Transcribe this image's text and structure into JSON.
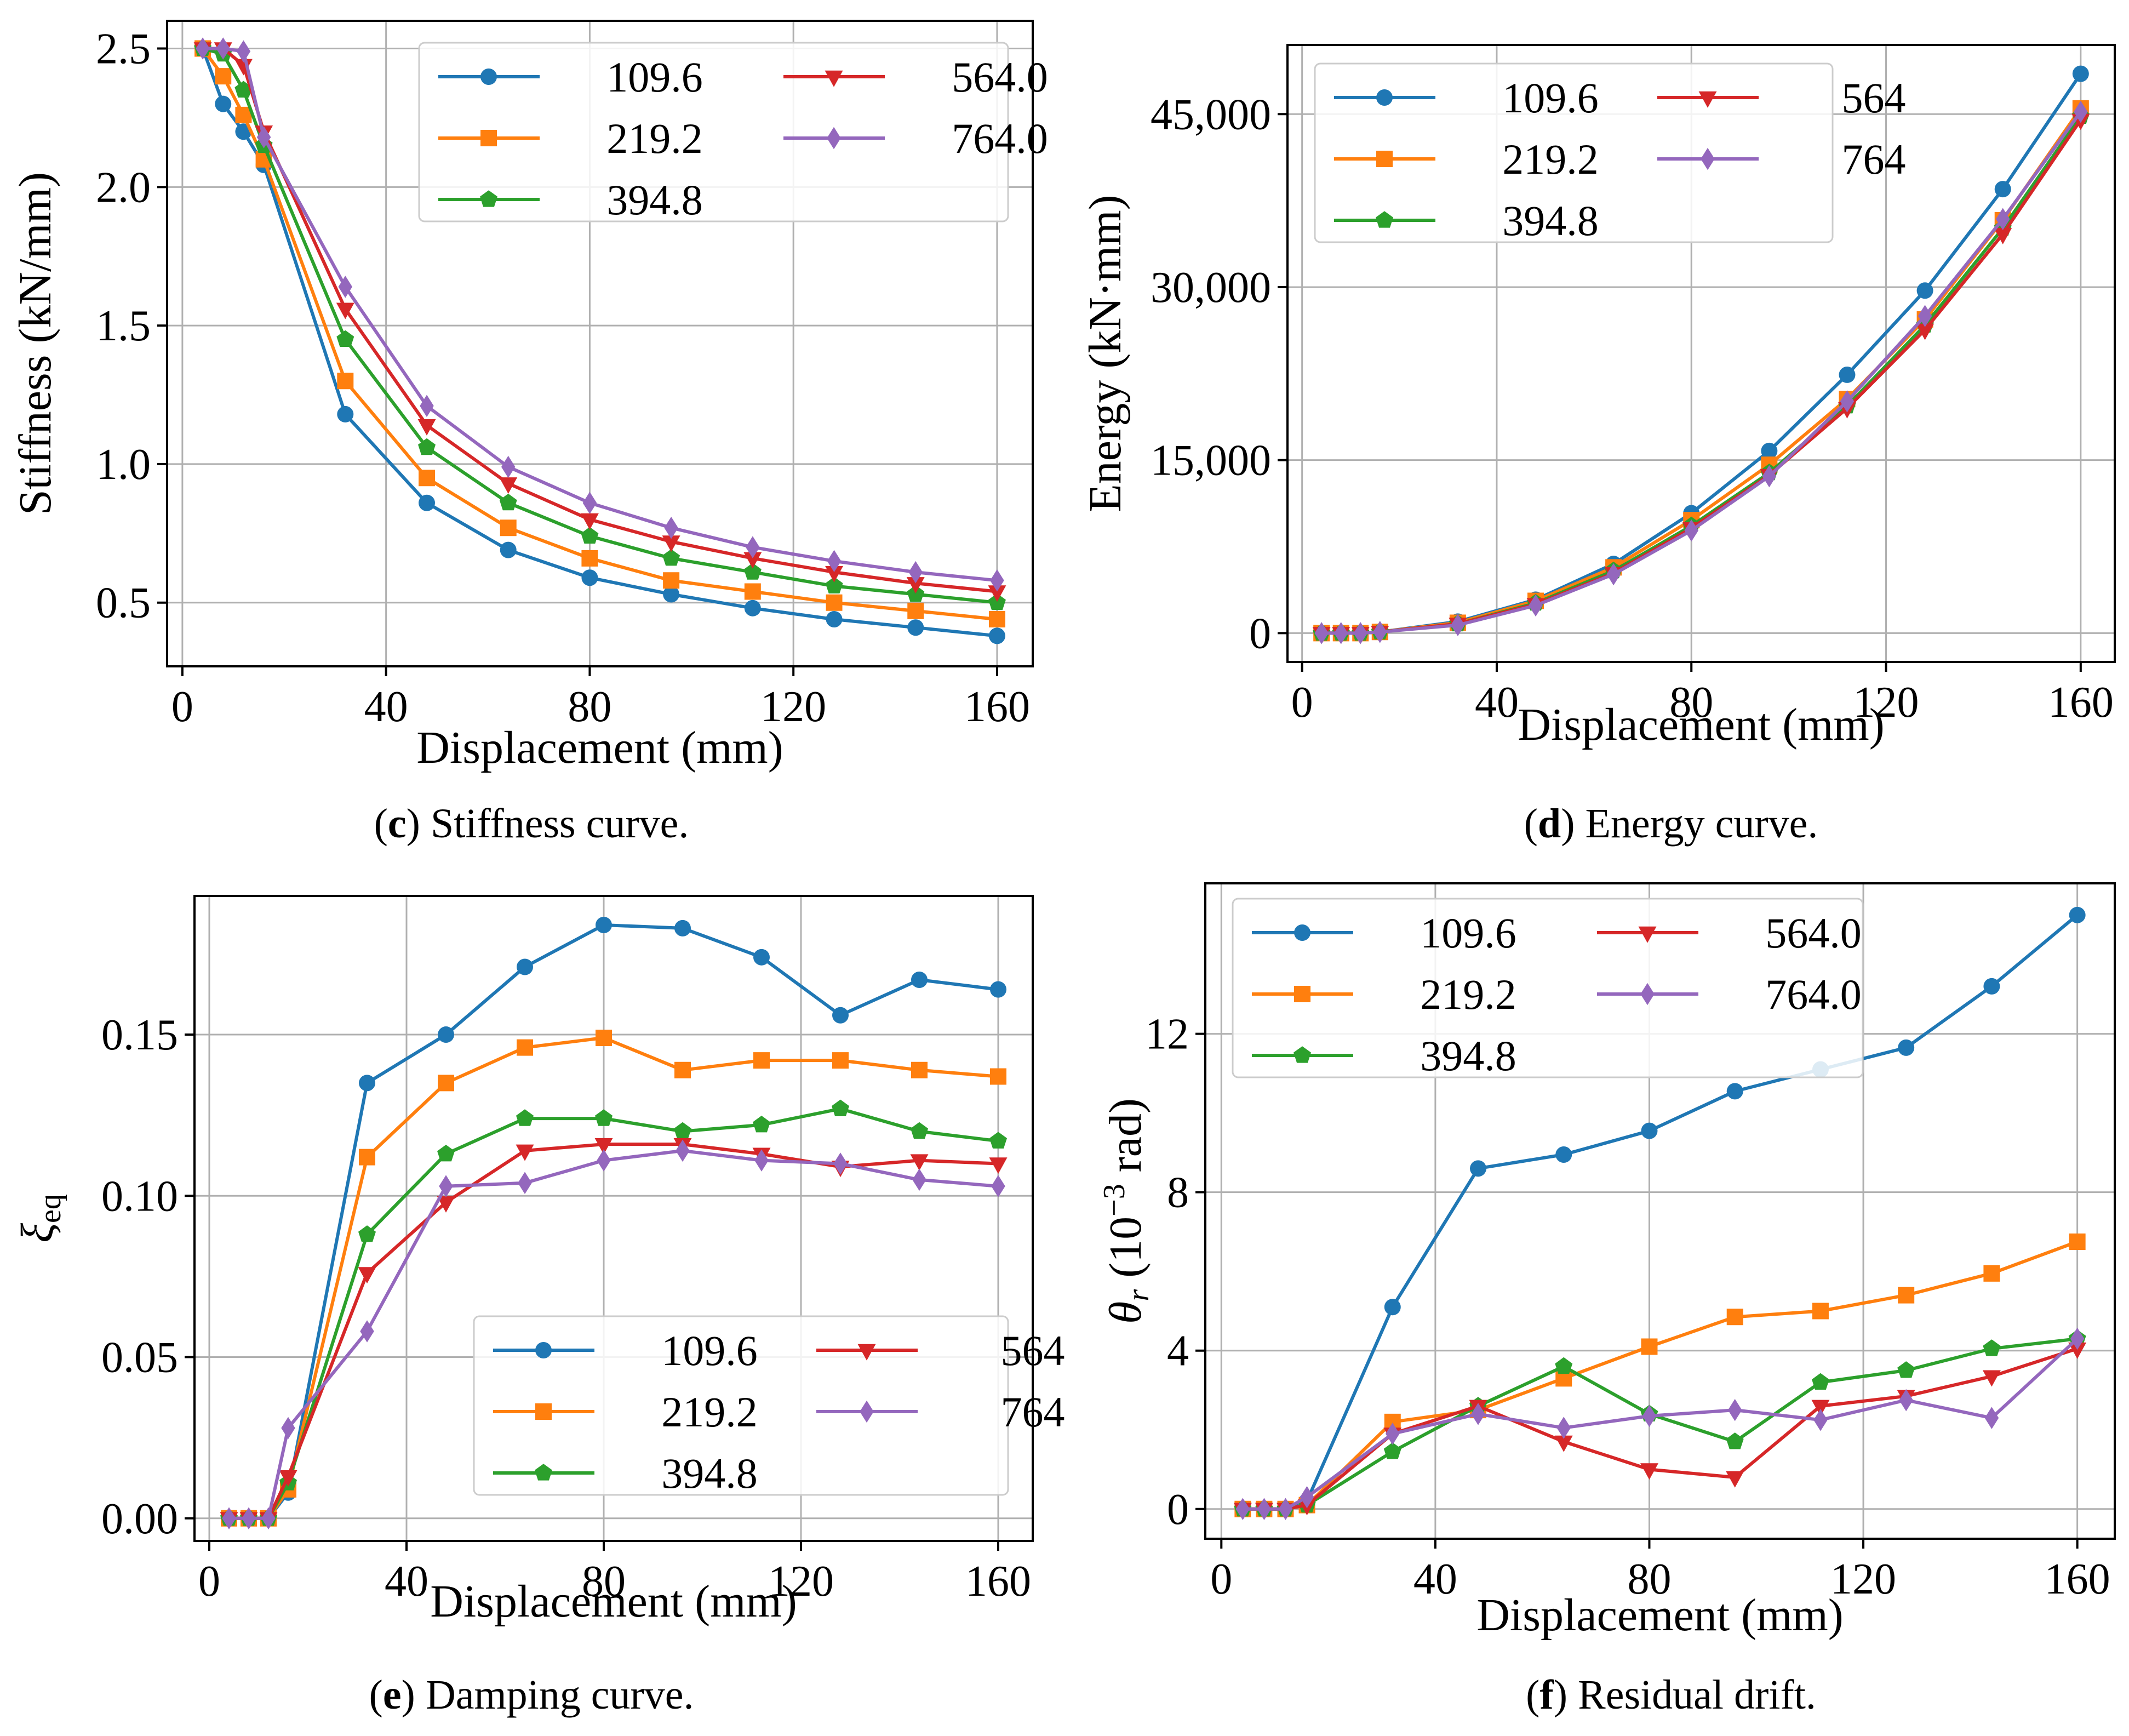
{
  "colors": {
    "109.6": "#1f77b4",
    "219.2": "#ff7f0e",
    "394.8": "#2ca02c",
    "564": "#d62728",
    "764": "#9467bd"
  },
  "chart_data": [
    {
      "id": "c",
      "type": "line",
      "caption_letter": "(c)",
      "caption_text": "Stiffness curve.",
      "xlabel": "Displacement (mm)",
      "ylabel": "Stiffness (kN/mm)",
      "xlim": [
        -3,
        167
      ],
      "ylim": [
        0.27,
        2.6
      ],
      "xticks": [
        0,
        40,
        80,
        120,
        160
      ],
      "xtick_labels": [
        "0",
        "40",
        "80",
        "120",
        "160"
      ],
      "yticks": [
        0.5,
        1.0,
        1.5,
        2.0,
        2.5
      ],
      "ytick_labels": [
        "0.5",
        "1.0",
        "1.5",
        "2.0",
        "2.5"
      ],
      "grid": true,
      "legend_position": "top-right",
      "x": [
        4,
        8,
        12,
        16,
        32,
        48,
        64,
        80,
        96,
        112,
        128,
        144,
        160
      ],
      "series": [
        {
          "name": "109.6",
          "marker": "circle",
          "values": [
            2.5,
            2.3,
            2.2,
            2.08,
            1.18,
            0.86,
            0.69,
            0.59,
            0.53,
            0.48,
            0.44,
            0.41,
            0.38
          ]
        },
        {
          "name": "219.2",
          "marker": "square",
          "values": [
            2.5,
            2.4,
            2.26,
            2.1,
            1.3,
            0.95,
            0.77,
            0.66,
            0.58,
            0.54,
            0.5,
            0.47,
            0.44
          ]
        },
        {
          "name": "394.8",
          "marker": "pentagon",
          "values": [
            2.5,
            2.48,
            2.35,
            2.15,
            1.45,
            1.06,
            0.86,
            0.74,
            0.66,
            0.61,
            0.56,
            0.53,
            0.5
          ]
        },
        {
          "name": "564.0",
          "marker": "triangle-down",
          "values": [
            2.5,
            2.5,
            2.44,
            2.2,
            1.56,
            1.14,
            0.93,
            0.8,
            0.72,
            0.66,
            0.61,
            0.57,
            0.54
          ]
        },
        {
          "name": "764.0",
          "marker": "diamond",
          "values": [
            2.5,
            2.5,
            2.49,
            2.18,
            1.64,
            1.21,
            0.99,
            0.86,
            0.77,
            0.7,
            0.65,
            0.61,
            0.58
          ]
        }
      ]
    },
    {
      "id": "d",
      "type": "line",
      "caption_letter": "(d)",
      "caption_text": "Energy curve.",
      "xlabel": "Displacement (mm)",
      "ylabel": "Energy (kN·mm)",
      "xlim": [
        -3,
        167
      ],
      "ylim": [
        -2500,
        51000
      ],
      "xticks": [
        0,
        40,
        80,
        120,
        160
      ],
      "xtick_labels": [
        "0",
        "40",
        "80",
        "120",
        "160"
      ],
      "yticks": [
        0,
        15000,
        30000,
        45000
      ],
      "ytick_labels": [
        "0",
        "15,000",
        "30,000",
        "45,000"
      ],
      "grid": true,
      "legend_position": "top-left",
      "x": [
        4,
        8,
        12,
        16,
        32,
        48,
        64,
        80,
        96,
        112,
        128,
        144,
        160
      ],
      "series": [
        {
          "name": "109.6",
          "marker": "circle",
          "values": [
            0,
            0,
            0,
            100,
            1000,
            2900,
            6000,
            10400,
            15800,
            22400,
            29700,
            38500,
            48500
          ]
        },
        {
          "name": "219.2",
          "marker": "square",
          "values": [
            0,
            0,
            0,
            100,
            900,
            2800,
            5700,
            9800,
            14600,
            20300,
            27200,
            35800,
            45500
          ]
        },
        {
          "name": "394.8",
          "marker": "pentagon",
          "values": [
            0,
            0,
            0,
            100,
            800,
            2600,
            5400,
            9300,
            13900,
            19700,
            26700,
            35100,
            44800
          ]
        },
        {
          "name": "564",
          "marker": "triangle-down",
          "values": [
            0,
            0,
            0,
            100,
            800,
            2500,
            5200,
            9100,
            13700,
            19500,
            26300,
            34600,
            44500
          ]
        },
        {
          "name": "764",
          "marker": "diamond",
          "values": [
            0,
            0,
            0,
            100,
            700,
            2400,
            5100,
            8900,
            13600,
            20100,
            27500,
            35900,
            45200
          ]
        }
      ]
    },
    {
      "id": "e",
      "type": "line",
      "caption_letter": "(e)",
      "caption_text": "Damping curve.",
      "xlabel": "Displacement (mm)",
      "ylabel": "ξ",
      "ylabel_sub": "eq",
      "xlim": [
        -3,
        167
      ],
      "ylim": [
        -0.007,
        0.193
      ],
      "xticks": [
        0,
        40,
        80,
        120,
        160
      ],
      "xtick_labels": [
        "0",
        "40",
        "80",
        "120",
        "160"
      ],
      "yticks": [
        0.0,
        0.05,
        0.1,
        0.15
      ],
      "ytick_labels": [
        "0.00",
        "0.05",
        "0.10",
        "0.15"
      ],
      "grid": true,
      "legend_position": "bottom-right",
      "x": [
        4,
        8,
        12,
        16,
        32,
        48,
        64,
        80,
        96,
        112,
        128,
        144,
        160
      ],
      "series": [
        {
          "name": "109.6",
          "marker": "circle",
          "values": [
            0,
            0,
            0,
            0.008,
            0.135,
            0.15,
            0.171,
            0.184,
            0.183,
            0.174,
            0.156,
            0.167,
            0.164
          ]
        },
        {
          "name": "219.2",
          "marker": "square",
          "values": [
            0,
            0,
            0,
            0.009,
            0.112,
            0.135,
            0.146,
            0.149,
            0.139,
            0.142,
            0.142,
            0.139,
            0.137
          ]
        },
        {
          "name": "394.8",
          "marker": "pentagon",
          "values": [
            0,
            0,
            0,
            0.011,
            0.088,
            0.113,
            0.124,
            0.124,
            0.12,
            0.122,
            0.127,
            0.12,
            0.117
          ]
        },
        {
          "name": "564",
          "marker": "triangle-down",
          "values": [
            0,
            0,
            0,
            0.013,
            0.076,
            0.098,
            0.114,
            0.116,
            0.116,
            0.113,
            0.109,
            0.111,
            0.11
          ]
        },
        {
          "name": "764",
          "marker": "diamond",
          "values": [
            0,
            0,
            0,
            0.028,
            0.058,
            0.103,
            0.104,
            0.111,
            0.114,
            0.111,
            0.11,
            0.105,
            0.103
          ]
        }
      ]
    },
    {
      "id": "f",
      "type": "line",
      "caption_letter": "(f)",
      "caption_text": "Residual drift.",
      "xlabel": "Displacement (mm)",
      "ylabel": "θr (10⁻³ rad)",
      "ylabel_parts": [
        "θ",
        "r",
        " (10",
        "−3",
        " rad)"
      ],
      "xlim": [
        -3,
        167
      ],
      "ylim": [
        -0.75,
        15.8
      ],
      "xticks": [
        0,
        40,
        80,
        120,
        160
      ],
      "xtick_labels": [
        "0",
        "40",
        "80",
        "120",
        "160"
      ],
      "yticks": [
        0,
        4,
        8,
        12
      ],
      "ytick_labels": [
        "0",
        "4",
        "8",
        "12"
      ],
      "grid": true,
      "legend_position": "top-left",
      "x": [
        4,
        8,
        12,
        16,
        32,
        48,
        64,
        80,
        96,
        112,
        128,
        144,
        160
      ],
      "series": [
        {
          "name": "109.6",
          "marker": "circle",
          "values": [
            0,
            0,
            0,
            0.2,
            5.1,
            8.6,
            8.95,
            9.55,
            10.55,
            11.1,
            11.65,
            13.2,
            15.0
          ]
        },
        {
          "name": "219.2",
          "marker": "square",
          "values": [
            0,
            0,
            0,
            0.1,
            2.2,
            2.5,
            3.3,
            4.1,
            4.85,
            5.0,
            5.4,
            5.95,
            6.75
          ]
        },
        {
          "name": "394.8",
          "marker": "pentagon",
          "values": [
            0,
            0,
            0,
            0.1,
            1.45,
            2.6,
            3.6,
            2.4,
            1.7,
            3.2,
            3.5,
            4.05,
            4.3
          ]
        },
        {
          "name": "564.0",
          "marker": "triangle-down",
          "values": [
            0,
            0,
            0,
            0.1,
            1.9,
            2.6,
            1.7,
            1.0,
            0.8,
            2.6,
            2.85,
            3.35,
            4.05
          ]
        },
        {
          "name": "764.0",
          "marker": "diamond",
          "values": [
            0,
            0,
            0,
            0.3,
            1.9,
            2.4,
            2.05,
            2.35,
            2.5,
            2.25,
            2.75,
            2.3,
            4.3
          ]
        }
      ]
    }
  ]
}
